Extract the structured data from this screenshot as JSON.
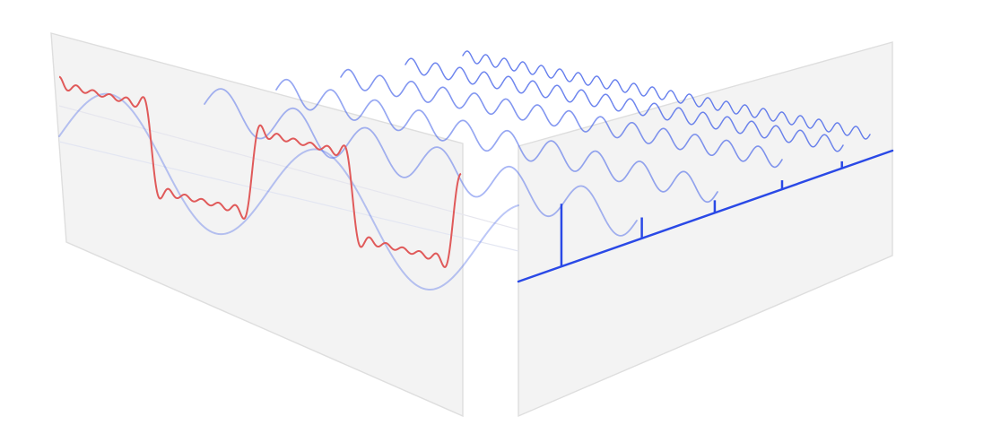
{
  "diagram": {
    "subject": "",
    "time_domain_panel": {
      "signal": "square wave",
      "harmonics_summed": [
        1,
        3,
        5,
        7,
        9,
        11
      ],
      "color": "#e05a5a"
    },
    "component_sinusoids": {
      "harmonics": [
        1,
        3,
        5,
        7,
        9,
        11
      ],
      "relative_amplitudes": [
        1,
        0.333,
        0.2,
        0.143,
        0.111,
        0.091
      ],
      "color": "#3f5ee8"
    },
    "frequency_domain_panel": {
      "axis_color": "#2a49e6",
      "spectral_lines": [
        {
          "harmonic": 1,
          "amplitude": 1
        },
        {
          "harmonic": 3,
          "amplitude": 0.333
        },
        {
          "harmonic": 5,
          "amplitude": 0.2
        },
        {
          "harmonic": 7,
          "amplitude": 0.143
        },
        {
          "harmonic": 9,
          "amplitude": 0.111
        }
      ]
    },
    "panel_color": "#f3f3f3",
    "panel_edge_color": "#dedede"
  }
}
